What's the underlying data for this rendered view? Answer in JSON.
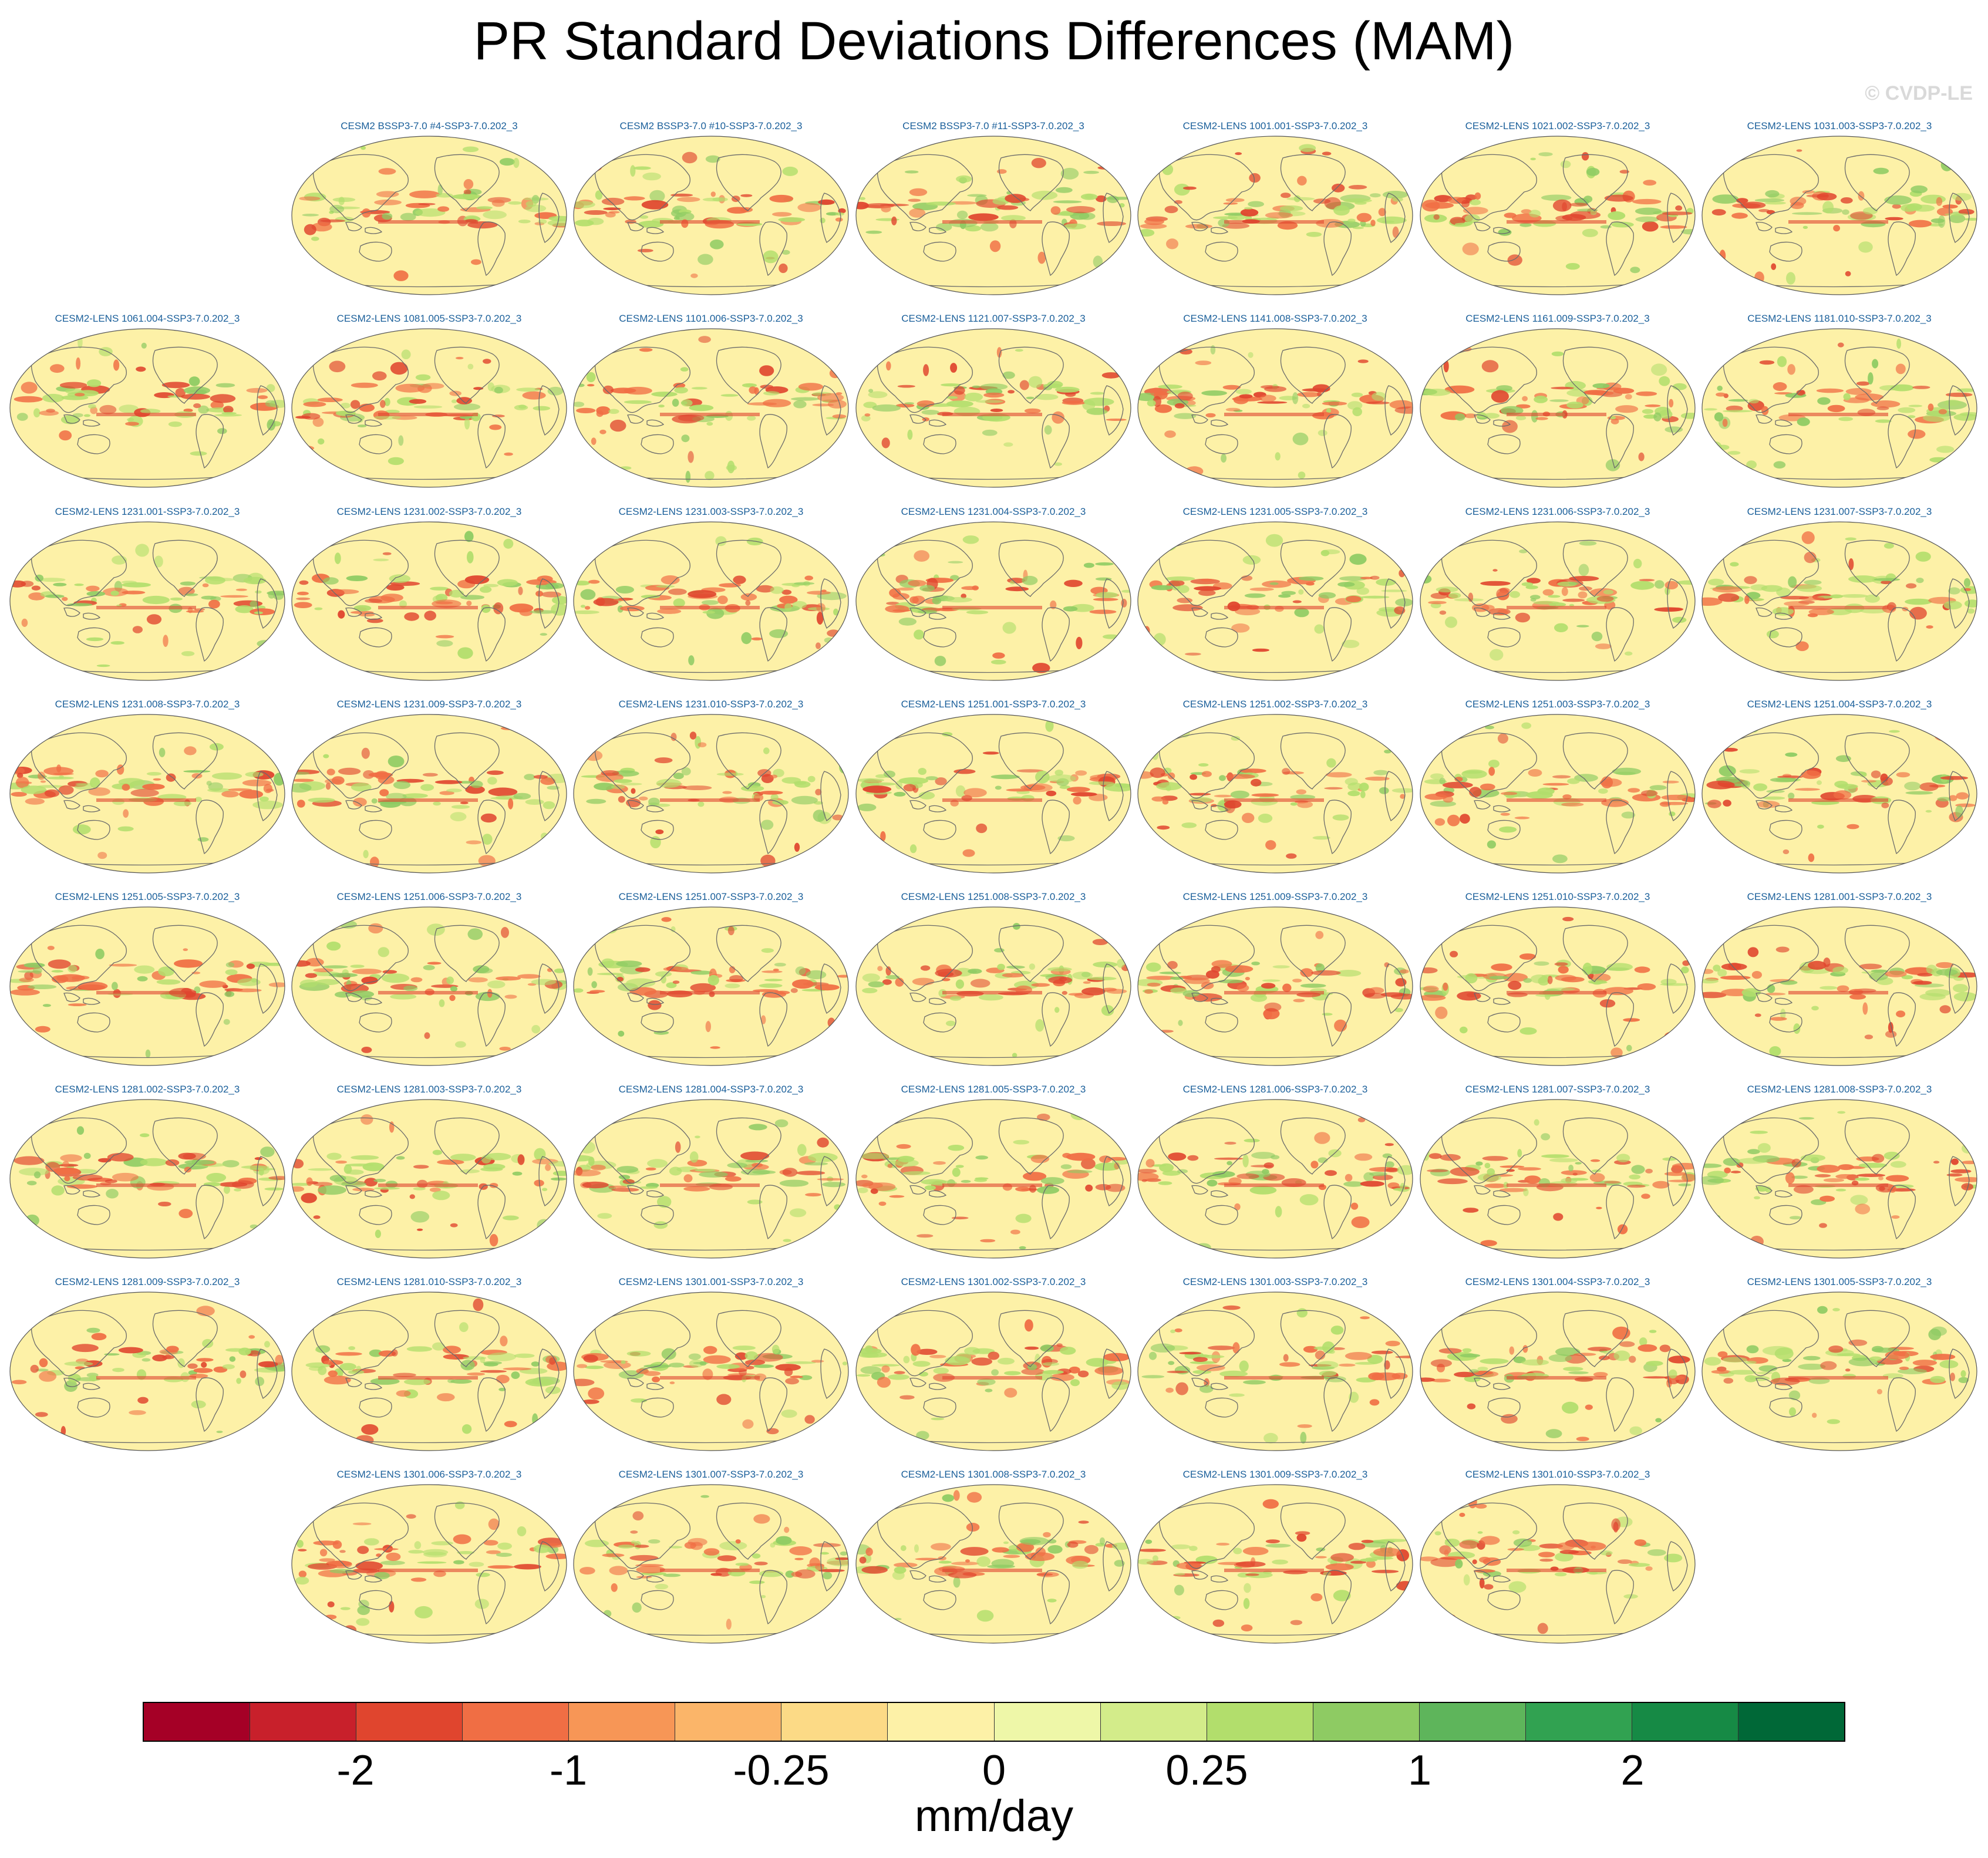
{
  "title": "PR Standard Deviations Differences (MAM)",
  "watermark": "© CVDP-LE",
  "colorbar": {
    "units": "mm/day",
    "colors": [
      "#a50026",
      "#c8202b",
      "#e0452e",
      "#f06e44",
      "#f79656",
      "#fbb569",
      "#fcda86",
      "#fdf1a7",
      "#eef7a8",
      "#d3ec8a",
      "#b2de6c",
      "#8ecb63",
      "#5eb55b",
      "#31a251",
      "#168a45",
      "#006837"
    ],
    "tick_labels": [
      "-2",
      "-1",
      "-0.25",
      "0",
      "0.25",
      "1",
      "2"
    ],
    "tick_boundaries": [
      2,
      4,
      6,
      8,
      10,
      12,
      14
    ]
  },
  "map_colors": {
    "ocean_base": "#fdf1a7",
    "coast": "#6b6b6b",
    "neg": "#f06e44",
    "neg_strong": "#e0452e",
    "pos": "#b2de6c",
    "pos_strong": "#8ecb63"
  },
  "panels": [
    {
      "label": "CESM2 BSSP3-7.0 #4-SSP3-7.0.202_3"
    },
    {
      "label": "CESM2 BSSP3-7.0 #10-SSP3-7.0.202_3"
    },
    {
      "label": "CESM2 BSSP3-7.0 #11-SSP3-7.0.202_3"
    },
    {
      "label": "CESM2-LENS 1001.001-SSP3-7.0.202_3"
    },
    {
      "label": "CESM2-LENS 1021.002-SSP3-7.0.202_3"
    },
    {
      "label": "CESM2-LENS 1031.003-SSP3-7.0.202_3"
    },
    {
      "label": "CESM2-LENS 1061.004-SSP3-7.0.202_3"
    },
    {
      "label": "CESM2-LENS 1081.005-SSP3-7.0.202_3"
    },
    {
      "label": "CESM2-LENS 1101.006-SSP3-7.0.202_3"
    },
    {
      "label": "CESM2-LENS 1121.007-SSP3-7.0.202_3"
    },
    {
      "label": "CESM2-LENS 1141.008-SSP3-7.0.202_3"
    },
    {
      "label": "CESM2-LENS 1161.009-SSP3-7.0.202_3"
    },
    {
      "label": "CESM2-LENS 1181.010-SSP3-7.0.202_3"
    },
    {
      "label": "CESM2-LENS 1231.001-SSP3-7.0.202_3"
    },
    {
      "label": "CESM2-LENS 1231.002-SSP3-7.0.202_3"
    },
    {
      "label": "CESM2-LENS 1231.003-SSP3-7.0.202_3"
    },
    {
      "label": "CESM2-LENS 1231.004-SSP3-7.0.202_3"
    },
    {
      "label": "CESM2-LENS 1231.005-SSP3-7.0.202_3"
    },
    {
      "label": "CESM2-LENS 1231.006-SSP3-7.0.202_3"
    },
    {
      "label": "CESM2-LENS 1231.007-SSP3-7.0.202_3"
    },
    {
      "label": "CESM2-LENS 1231.008-SSP3-7.0.202_3"
    },
    {
      "label": "CESM2-LENS 1231.009-SSP3-7.0.202_3"
    },
    {
      "label": "CESM2-LENS 1231.010-SSP3-7.0.202_3"
    },
    {
      "label": "CESM2-LENS 1251.001-SSP3-7.0.202_3"
    },
    {
      "label": "CESM2-LENS 1251.002-SSP3-7.0.202_3"
    },
    {
      "label": "CESM2-LENS 1251.003-SSP3-7.0.202_3"
    },
    {
      "label": "CESM2-LENS 1251.004-SSP3-7.0.202_3"
    },
    {
      "label": "CESM2-LENS 1251.005-SSP3-7.0.202_3"
    },
    {
      "label": "CESM2-LENS 1251.006-SSP3-7.0.202_3"
    },
    {
      "label": "CESM2-LENS 1251.007-SSP3-7.0.202_3"
    },
    {
      "label": "CESM2-LENS 1251.008-SSP3-7.0.202_3"
    },
    {
      "label": "CESM2-LENS 1251.009-SSP3-7.0.202_3"
    },
    {
      "label": "CESM2-LENS 1251.010-SSP3-7.0.202_3"
    },
    {
      "label": "CESM2-LENS 1281.001-SSP3-7.0.202_3"
    },
    {
      "label": "CESM2-LENS 1281.002-SSP3-7.0.202_3"
    },
    {
      "label": "CESM2-LENS 1281.003-SSP3-7.0.202_3"
    },
    {
      "label": "CESM2-LENS 1281.004-SSP3-7.0.202_3"
    },
    {
      "label": "CESM2-LENS 1281.005-SSP3-7.0.202_3"
    },
    {
      "label": "CESM2-LENS 1281.006-SSP3-7.0.202_3"
    },
    {
      "label": "CESM2-LENS 1281.007-SSP3-7.0.202_3"
    },
    {
      "label": "CESM2-LENS 1281.008-SSP3-7.0.202_3"
    },
    {
      "label": "CESM2-LENS 1281.009-SSP3-7.0.202_3"
    },
    {
      "label": "CESM2-LENS 1281.010-SSP3-7.0.202_3"
    },
    {
      "label": "CESM2-LENS 1301.001-SSP3-7.0.202_3"
    },
    {
      "label": "CESM2-LENS 1301.002-SSP3-7.0.202_3"
    },
    {
      "label": "CESM2-LENS 1301.003-SSP3-7.0.202_3"
    },
    {
      "label": "CESM2-LENS 1301.004-SSP3-7.0.202_3"
    },
    {
      "label": "CESM2-LENS 1301.005-SSP3-7.0.202_3"
    },
    {
      "label": "CESM2-LENS 1301.006-SSP3-7.0.202_3"
    },
    {
      "label": "CESM2-LENS 1301.007-SSP3-7.0.202_3"
    },
    {
      "label": "CESM2-LENS 1301.008-SSP3-7.0.202_3"
    },
    {
      "label": "CESM2-LENS 1301.009-SSP3-7.0.202_3"
    },
    {
      "label": "CESM2-LENS 1301.010-SSP3-7.0.202_3"
    }
  ]
}
